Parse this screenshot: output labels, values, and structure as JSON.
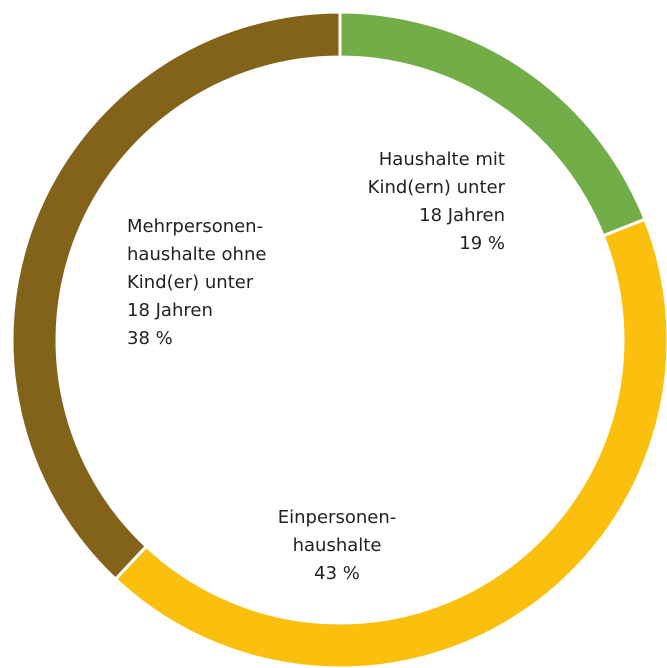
{
  "chart_data": {
    "type": "donut",
    "categories": [
      "Haushalte mit\nKind(ern) unter\n18 Jahren",
      "Einpersonen-\nhaushalte",
      "Mehrpersonen-\nhaushalte ohne\nKind(er) unter\n18 Jahren"
    ],
    "values": [
      19,
      43,
      38
    ],
    "value_labels": [
      "19 %",
      "43 %",
      "38 %"
    ],
    "colors": [
      "#72ad47",
      "#fbbf0d",
      "#83621a"
    ]
  }
}
